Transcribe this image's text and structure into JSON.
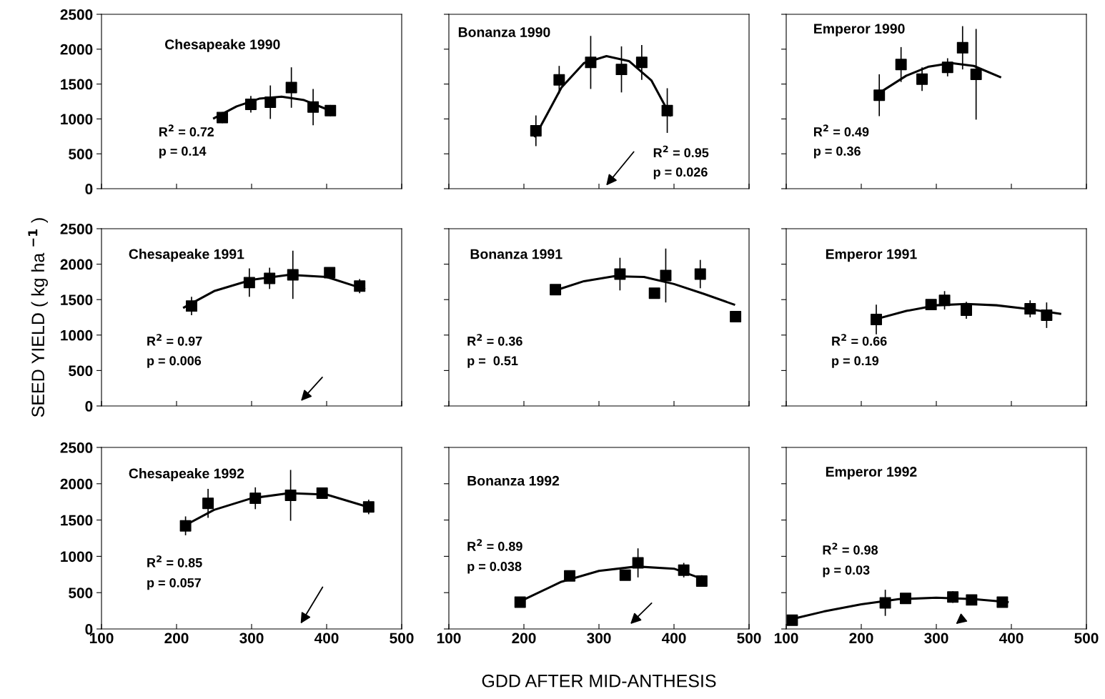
{
  "chart_data": [
    {
      "type": "scatter",
      "title": "Chesapeake 1990",
      "xlim": [
        100,
        500
      ],
      "ylim": [
        0,
        2500
      ],
      "xticks": [
        100,
        200,
        300,
        400,
        500
      ],
      "yticks": [
        0,
        500,
        1000,
        1500,
        2000,
        2500
      ],
      "tick_labels": "y",
      "marker": "square",
      "annotations": [
        "R$^{2}$ = 0.72",
        "p = 0.14"
      ],
      "series": [
        {
          "type": "scatter",
          "color": "#000000",
          "x": [
            261,
            299,
            325,
            353,
            382,
            405
          ],
          "values": [
            1020,
            1210,
            1240,
            1450,
            1170,
            1120
          ],
          "errors": [
            80,
            120,
            240,
            290,
            260,
            80
          ]
        },
        {
          "type": "line",
          "color": "#000000",
          "marker": "none",
          "x": [
            250,
            280,
            310,
            340,
            370,
            400,
            410
          ],
          "values": [
            1010,
            1180,
            1290,
            1320,
            1270,
            1140,
            1090
          ]
        }
      ]
    },
    {
      "type": "scatter",
      "title": "Bonanza 1990",
      "xlim": [
        100,
        500
      ],
      "ylim": [
        0,
        2500
      ],
      "xticks": [
        100,
        200,
        300,
        400,
        500
      ],
      "yticks": [
        0,
        500,
        1000,
        1500,
        2000,
        2500
      ],
      "tick_labels": false,
      "marker": "square",
      "annotations": [
        "R$^{2}$ = 0.95",
        "p = 0.026"
      ],
      "series": [
        {
          "type": "scatter",
          "color": "#000000",
          "x": [
            216,
            247,
            289,
            330,
            357,
            391
          ],
          "values": [
            830,
            1560,
            1810,
            1710,
            1810,
            1120
          ],
          "errors": [
            220,
            200,
            380,
            330,
            250,
            320
          ]
        },
        {
          "type": "line",
          "color": "#000000",
          "marker": "none",
          "x": [
            215,
            250,
            280,
            310,
            340,
            370,
            395
          ],
          "values": [
            750,
            1450,
            1800,
            1900,
            1830,
            1550,
            1050
          ]
        }
      ]
    },
    {
      "type": "scatter",
      "title": "Emperor 1990",
      "xlim": [
        100,
        500
      ],
      "ylim": [
        0,
        2500
      ],
      "xticks": [
        100,
        200,
        300,
        400,
        500
      ],
      "yticks": [
        0,
        500,
        1000,
        1500,
        2000,
        2500
      ],
      "tick_labels": false,
      "marker": "square",
      "annotations": [
        "R$^{2}$ = 0.49",
        "p = 0.36"
      ],
      "series": [
        {
          "type": "scatter",
          "color": "#000000",
          "x": [
            224,
            253,
            281,
            315,
            335,
            353
          ],
          "values": [
            1340,
            1780,
            1570,
            1740,
            2020,
            1640
          ],
          "errors": [
            300,
            250,
            170,
            130,
            310,
            650
          ]
        },
        {
          "type": "line",
          "color": "#000000",
          "marker": "none",
          "x": [
            225,
            260,
            290,
            320,
            350,
            385
          ],
          "values": [
            1380,
            1620,
            1750,
            1800,
            1760,
            1600
          ]
        }
      ]
    },
    {
      "type": "scatter",
      "title": "Chesapeake 1991",
      "ylabel": "SEED YIELD ( kg ha $^{−1}$ )",
      "xlim": [
        100,
        500
      ],
      "ylim": [
        0,
        2500
      ],
      "xticks": [
        100,
        200,
        300,
        400,
        500
      ],
      "yticks": [
        0,
        500,
        1000,
        1500,
        2000,
        2500
      ],
      "tick_labels": "y",
      "marker": "square",
      "annotations": [
        "R$^{2}$ = 0.97",
        "p = 0.006"
      ],
      "series": [
        {
          "type": "scatter",
          "color": "#000000",
          "x": [
            220,
            297,
            324,
            355,
            404,
            444
          ],
          "values": [
            1410,
            1740,
            1800,
            1850,
            1880,
            1690
          ],
          "errors": [
            130,
            200,
            150,
            340,
            null,
            100
          ]
        },
        {
          "type": "line",
          "color": "#000000",
          "marker": "none",
          "x": [
            210,
            250,
            300,
            350,
            400,
            450
          ],
          "values": [
            1390,
            1620,
            1780,
            1850,
            1820,
            1650
          ]
        }
      ]
    },
    {
      "type": "scatter",
      "title": "Bonanza 1991",
      "xlim": [
        100,
        500
      ],
      "ylim": [
        0,
        2500
      ],
      "xticks": [
        100,
        200,
        300,
        400,
        500
      ],
      "yticks": [
        0,
        500,
        1000,
        1500,
        2000,
        2500
      ],
      "tick_labels": false,
      "marker": "square",
      "annotations": [
        "R$^{2}$ = 0.36",
        "p =  0.51"
      ],
      "series": [
        {
          "type": "scatter",
          "color": "#000000",
          "x": [
            242,
            328,
            374,
            389,
            435,
            482
          ],
          "values": [
            1640,
            1860,
            1590,
            1840,
            1860,
            1260
          ],
          "errors": [
            null,
            230,
            null,
            380,
            200,
            null
          ]
        },
        {
          "type": "line",
          "color": "#000000",
          "marker": "none",
          "x": [
            245,
            280,
            320,
            360,
            400,
            440,
            480
          ],
          "values": [
            1640,
            1760,
            1830,
            1820,
            1720,
            1580,
            1430
          ]
        }
      ]
    },
    {
      "type": "scatter",
      "title": "Emperor 1991",
      "xlim": [
        100,
        500
      ],
      "ylim": [
        0,
        2500
      ],
      "xticks": [
        100,
        200,
        300,
        400,
        500
      ],
      "yticks": [
        0,
        500,
        1000,
        1500,
        2000,
        2500
      ],
      "tick_labels": false,
      "marker": "square",
      "annotations": [
        "R$^{2}$ = 0.66",
        "p = 0.19"
      ],
      "series": [
        {
          "type": "scatter",
          "color": "#000000",
          "x": [
            220,
            293,
            311,
            340,
            425,
            447
          ],
          "values": [
            1220,
            1430,
            1490,
            1350,
            1370,
            1280
          ],
          "errors": [
            210,
            null,
            130,
            120,
            120,
            180
          ]
        },
        {
          "type": "line",
          "color": "#000000",
          "marker": "none",
          "x": [
            225,
            260,
            300,
            340,
            380,
            420,
            465
          ],
          "values": [
            1240,
            1340,
            1420,
            1440,
            1420,
            1370,
            1300
          ]
        }
      ]
    },
    {
      "type": "scatter",
      "title": "Chesapeake 1992",
      "xlim": [
        100,
        500
      ],
      "ylim": [
        0,
        2500
      ],
      "xticks": [
        100,
        200,
        300,
        400,
        500
      ],
      "yticks": [
        0,
        500,
        1000,
        1500,
        2000,
        2500
      ],
      "marker": "square",
      "annotations": [
        "R$^{2}$ = 0.85",
        "p = 0.057"
      ],
      "series": [
        {
          "type": "scatter",
          "color": "#000000",
          "x": [
            212,
            242,
            305,
            352,
            394,
            456
          ],
          "values": [
            1420,
            1730,
            1800,
            1840,
            1870,
            1680
          ],
          "errors": [
            130,
            200,
            150,
            350,
            null,
            100
          ]
        },
        {
          "type": "line",
          "color": "#000000",
          "marker": "none",
          "x": [
            210,
            250,
            300,
            350,
            400,
            455
          ],
          "values": [
            1420,
            1640,
            1800,
            1870,
            1850,
            1680
          ]
        }
      ]
    },
    {
      "type": "scatter",
      "title": "Bonanza 1992",
      "xlabel": "GDD AFTER MID-ANTHESIS",
      "xlim": [
        100,
        500
      ],
      "ylim": [
        0,
        2500
      ],
      "xticks": [
        100,
        200,
        300,
        400,
        500
      ],
      "yticks": [
        0,
        500,
        1000,
        1500,
        2000,
        2500
      ],
      "tick_labels": "x",
      "marker": "square",
      "annotations": [
        "R$^{2}$ = 0.89",
        "p = 0.038"
      ],
      "series": [
        {
          "type": "scatter",
          "color": "#000000",
          "x": [
            195,
            261,
            335,
            352,
            413,
            437
          ],
          "values": [
            370,
            730,
            740,
            910,
            810,
            660
          ],
          "errors": [
            null,
            null,
            null,
            200,
            100,
            80
          ]
        },
        {
          "type": "line",
          "color": "#000000",
          "marker": "none",
          "x": [
            195,
            250,
            300,
            350,
            400,
            440
          ],
          "values": [
            380,
            650,
            800,
            860,
            830,
            680
          ]
        }
      ]
    },
    {
      "type": "scatter",
      "title": "Emperor 1992",
      "xlim": [
        100,
        500
      ],
      "ylim": [
        0,
        2500
      ],
      "xticks": [
        100,
        200,
        300,
        400,
        500
      ],
      "yticks": [
        0,
        500,
        1000,
        1500,
        2000,
        2500
      ],
      "tick_labels": "x",
      "marker": "square",
      "annotations": [
        "R$^{2}$ = 0.98",
        "p = 0.03"
      ],
      "series": [
        {
          "type": "scatter",
          "color": "#000000",
          "x": [
            108,
            232,
            259,
            322,
            347,
            388
          ],
          "values": [
            120,
            360,
            420,
            440,
            400,
            370
          ],
          "errors": [
            null,
            180,
            null,
            80,
            null,
            null
          ]
        },
        {
          "type": "line",
          "color": "#000000",
          "marker": "none",
          "x": [
            105,
            150,
            200,
            250,
            300,
            350,
            395
          ],
          "values": [
            130,
            240,
            340,
            410,
            430,
            410,
            370
          ]
        }
      ]
    }
  ]
}
